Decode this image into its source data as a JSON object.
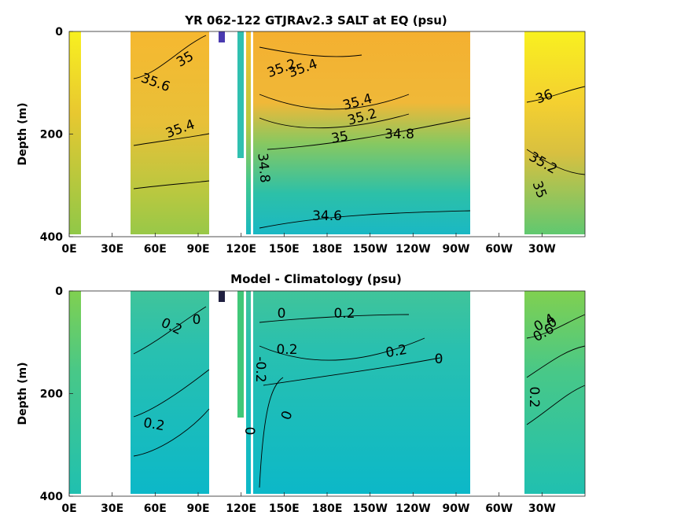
{
  "chart_data": [
    {
      "type": "heatmap",
      "title": "YR 062-122 GTJRAv2.3 SALT at EQ (psu)",
      "xlabel": "",
      "ylabel": "Depth (m)",
      "x_ticks": [
        "0E",
        "30E",
        "60E",
        "90E",
        "120E",
        "150E",
        "180E",
        "150W",
        "120W",
        "90W",
        "60W",
        "30W"
      ],
      "y_ticks": [
        "0",
        "200",
        "400"
      ],
      "ylim": [
        400,
        0
      ],
      "contour_labels": [
        "35",
        "35.6",
        "35.4",
        "35.2",
        "35.4",
        "35.4",
        "35.2",
        "35",
        "34.8",
        "34.8",
        "34.6",
        "36",
        "35.2",
        "35"
      ],
      "colors": {
        "low": "#12b8c8",
        "mid": "#4cc87a",
        "high": "#f8b030",
        "max": "#f8f020",
        "mask": "#ffffff"
      }
    },
    {
      "type": "heatmap",
      "title": "Model - Climatology (psu)",
      "xlabel": "",
      "ylabel": "Depth (m)",
      "x_ticks": [
        "0E",
        "30E",
        "60E",
        "90E",
        "120E",
        "150E",
        "180E",
        "150W",
        "120W",
        "90W",
        "60W",
        "30W"
      ],
      "y_ticks": [
        "0",
        "200",
        "400"
      ],
      "ylim": [
        400,
        0
      ],
      "contour_labels": [
        "0.2",
        "0",
        "0",
        "0.2",
        "0",
        "0.2",
        "0.2",
        "0",
        "-0.2",
        "0",
        "0.2",
        "0.4",
        "0.6",
        "0.2",
        "0"
      ],
      "colors": {
        "low": "#0cb4c8",
        "mid": "#30c8a8",
        "high": "#80d050",
        "mask": "#ffffff"
      }
    }
  ]
}
